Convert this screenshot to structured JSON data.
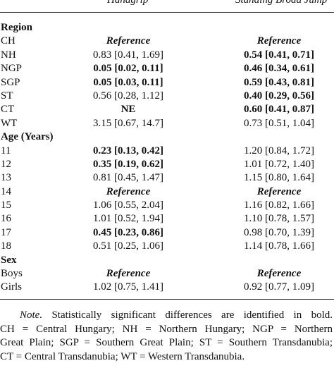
{
  "header": {
    "col1": "Handgrip",
    "col2": "Standing Broad Jump"
  },
  "rows": [
    {
      "label": "Region",
      "type": "section",
      "c1": "",
      "c2": "",
      "c1_style": "",
      "c2_style": ""
    },
    {
      "label": "CH",
      "type": "data",
      "c1": "Reference",
      "c2": "Reference",
      "c1_style": "ref",
      "c2_style": "ref"
    },
    {
      "label": "NH",
      "type": "data",
      "c1": "0.83 [0.41, 1.69]",
      "c2": "0.54 [0.41, 0.71]",
      "c1_style": "",
      "c2_style": "bold"
    },
    {
      "label": "NGP",
      "type": "data",
      "c1": "0.05 [0.02, 0.11]",
      "c2": "0.46 [0.34, 0.61]",
      "c1_style": "bold",
      "c2_style": "bold"
    },
    {
      "label": "SGP",
      "type": "data",
      "c1": "0.05 [0.03, 0.11]",
      "c2": "0.59 [0.43, 0.81]",
      "c1_style": "bold",
      "c2_style": "bold"
    },
    {
      "label": "ST",
      "type": "data",
      "c1": "0.56 [0.28, 1.12]",
      "c2": "0.40 [0.29, 0.56]",
      "c1_style": "",
      "c2_style": "bold"
    },
    {
      "label": "CT",
      "type": "data",
      "c1": "NE",
      "c2": "0.60 [0.41, 0.87]",
      "c1_style": "bold",
      "c2_style": "bold"
    },
    {
      "label": "WT",
      "type": "data",
      "c1": "3.15 [0.67, 14.7]",
      "c2": "0.73 [0.51, 1.04]",
      "c1_style": "",
      "c2_style": ""
    },
    {
      "label": "Age (Years)",
      "type": "section",
      "c1": "",
      "c2": "",
      "c1_style": "",
      "c2_style": ""
    },
    {
      "label": "11",
      "type": "data",
      "c1": "0.23 [0.13, 0.42]",
      "c2": "1.20 [0.84, 1.72]",
      "c1_style": "bold",
      "c2_style": ""
    },
    {
      "label": "12",
      "type": "data",
      "c1": "0.35 [0.19, 0.62]",
      "c2": "1.01 [0.72, 1.40]",
      "c1_style": "bold",
      "c2_style": ""
    },
    {
      "label": "13",
      "type": "data",
      "c1": "0.81 [0.45, 1.47]",
      "c2": "1.15 [0.80, 1.64]",
      "c1_style": "",
      "c2_style": ""
    },
    {
      "label": "14",
      "type": "data",
      "c1": "Reference",
      "c2": "Reference",
      "c1_style": "ref",
      "c2_style": "ref"
    },
    {
      "label": "15",
      "type": "data",
      "c1": "1.06 [0.55, 2.04]",
      "c2": "1.16 [0.82, 1.66]",
      "c1_style": "",
      "c2_style": ""
    },
    {
      "label": "16",
      "type": "data",
      "c1": "1.01 [0.52, 1.94]",
      "c2": "1.10 [0.78, 1.57]",
      "c1_style": "",
      "c2_style": ""
    },
    {
      "label": "17",
      "type": "data",
      "c1": "0.45 [0.23, 0.86]",
      "c2": "0.98 [0.70, 1.39]",
      "c1_style": "bold",
      "c2_style": ""
    },
    {
      "label": "18",
      "type": "data",
      "c1": "0.51 [0.25, 1.06]",
      "c2": "1.14 [0.78, 1.66]",
      "c1_style": "",
      "c2_style": ""
    },
    {
      "label": "Sex",
      "type": "section",
      "c1": "",
      "c2": "",
      "c1_style": "",
      "c2_style": ""
    },
    {
      "label": "Boys",
      "type": "data",
      "c1": "Reference",
      "c2": "Reference",
      "c1_style": "ref",
      "c2_style": "ref"
    },
    {
      "label": "Girls",
      "type": "data",
      "c1": "1.02 [0.75, 1.41]",
      "c2": "0.92 [0.77, 1.09]",
      "c1_style": "",
      "c2_style": ""
    }
  ],
  "note": {
    "prefix": "Note.",
    "line1": "Statistically significant differences are identified in bold.",
    "line2": "CH = Central Hungary; NH = Northern Hungary; NGP = Northern",
    "line3": "Great Plain; SGP = Southern Great Plain; ST = Southern Transdanubia;",
    "line4": "CT = Central Transdanubia; WT = Western Transdanubia."
  }
}
